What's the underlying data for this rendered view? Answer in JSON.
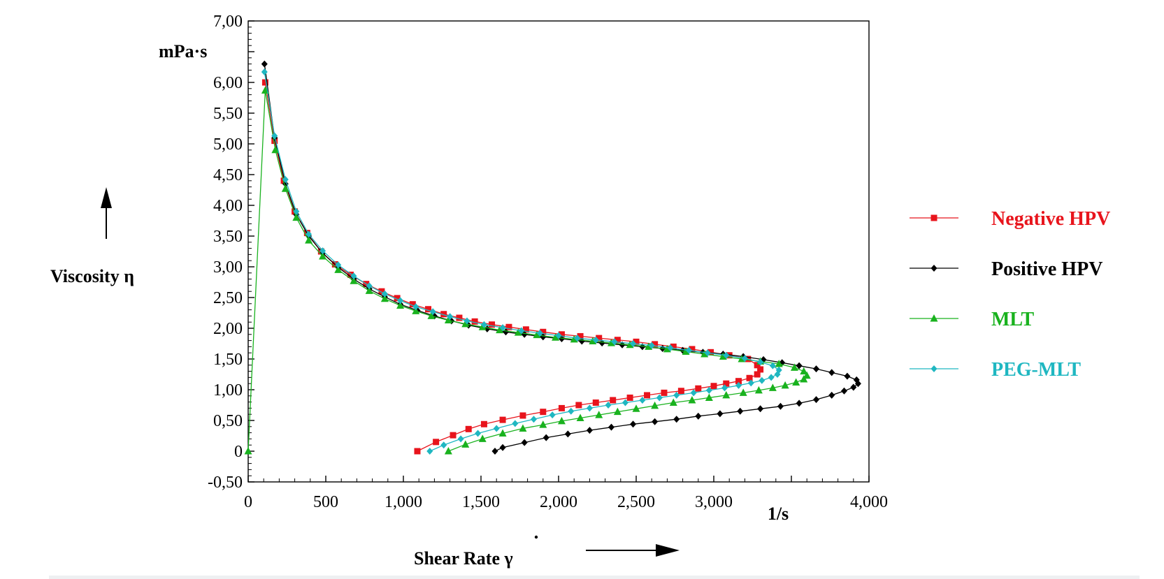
{
  "chart_data": {
    "type": "scatter",
    "title": "",
    "xlabel": "Shear Rate γ",
    "xunit": "1/s",
    "ylabel": "Viscosity η",
    "yunit": "mPa·s",
    "xlim": [
      0,
      4000
    ],
    "ylim": [
      -0.5,
      7.0
    ],
    "x_ticks": [
      "0",
      "500",
      "1,000",
      "1,500",
      "2,000",
      "2,500",
      "3,000",
      "4,000"
    ],
    "y_ticks": [
      "7,00",
      "6,00",
      "5,50",
      "5,00",
      "4,50",
      "4,00",
      "3,50",
      "3,00",
      "2,50",
      "2,00",
      "1,50",
      "1,00",
      "0,50",
      "0",
      "-0,50"
    ],
    "grid": false,
    "legend_position": "right",
    "series": [
      {
        "name": "Negative HPV",
        "color": "#e8141c",
        "marker": "square",
        "points": [
          [
            110,
            6.0
          ],
          [
            170,
            5.05
          ],
          [
            230,
            4.4
          ],
          [
            300,
            3.9
          ],
          [
            380,
            3.55
          ],
          [
            470,
            3.25
          ],
          [
            560,
            3.04
          ],
          [
            660,
            2.87
          ],
          [
            760,
            2.72
          ],
          [
            860,
            2.6
          ],
          [
            960,
            2.49
          ],
          [
            1060,
            2.39
          ],
          [
            1160,
            2.31
          ],
          [
            1260,
            2.23
          ],
          [
            1360,
            2.17
          ],
          [
            1460,
            2.11
          ],
          [
            1570,
            2.06
          ],
          [
            1680,
            2.02
          ],
          [
            1790,
            1.98
          ],
          [
            1900,
            1.94
          ],
          [
            2020,
            1.9
          ],
          [
            2140,
            1.87
          ],
          [
            2260,
            1.84
          ],
          [
            2380,
            1.81
          ],
          [
            2500,
            1.78
          ],
          [
            2620,
            1.74
          ],
          [
            2740,
            1.7
          ],
          [
            2860,
            1.66
          ],
          [
            2980,
            1.61
          ],
          [
            3100,
            1.56
          ],
          [
            3220,
            1.5
          ],
          [
            3280,
            1.4
          ],
          [
            3300,
            1.33
          ],
          [
            3280,
            1.25
          ],
          [
            3230,
            1.19
          ],
          [
            3160,
            1.14
          ],
          [
            3080,
            1.1
          ],
          [
            3000,
            1.06
          ],
          [
            2900,
            1.02
          ],
          [
            2790,
            0.98
          ],
          [
            2680,
            0.95
          ],
          [
            2570,
            0.91
          ],
          [
            2460,
            0.87
          ],
          [
            2350,
            0.83
          ],
          [
            2240,
            0.79
          ],
          [
            2130,
            0.75
          ],
          [
            2020,
            0.7
          ],
          [
            1900,
            0.64
          ],
          [
            1770,
            0.58
          ],
          [
            1640,
            0.51
          ],
          [
            1520,
            0.44
          ],
          [
            1420,
            0.36
          ],
          [
            1320,
            0.26
          ],
          [
            1210,
            0.15
          ],
          [
            1090,
            0.0
          ]
        ]
      },
      {
        "name": "Positive HPV",
        "color": "#000000",
        "marker": "diamond",
        "points": [
          [
            105,
            6.3
          ],
          [
            170,
            5.1
          ],
          [
            240,
            4.35
          ],
          [
            310,
            3.85
          ],
          [
            390,
            3.5
          ],
          [
            480,
            3.22
          ],
          [
            580,
            2.99
          ],
          [
            680,
            2.8
          ],
          [
            780,
            2.64
          ],
          [
            880,
            2.51
          ],
          [
            980,
            2.39
          ],
          [
            1090,
            2.29
          ],
          [
            1200,
            2.2
          ],
          [
            1310,
            2.12
          ],
          [
            1420,
            2.05
          ],
          [
            1540,
            1.99
          ],
          [
            1660,
            1.94
          ],
          [
            1780,
            1.9
          ],
          [
            1900,
            1.86
          ],
          [
            2020,
            1.83
          ],
          [
            2150,
            1.79
          ],
          [
            2280,
            1.76
          ],
          [
            2410,
            1.73
          ],
          [
            2540,
            1.7
          ],
          [
            2670,
            1.67
          ],
          [
            2800,
            1.64
          ],
          [
            2930,
            1.61
          ],
          [
            3060,
            1.58
          ],
          [
            3190,
            1.54
          ],
          [
            3320,
            1.49
          ],
          [
            3440,
            1.44
          ],
          [
            3550,
            1.39
          ],
          [
            3660,
            1.34
          ],
          [
            3760,
            1.28
          ],
          [
            3860,
            1.22
          ],
          [
            3920,
            1.16
          ],
          [
            3930,
            1.1
          ],
          [
            3900,
            1.04
          ],
          [
            3840,
            0.98
          ],
          [
            3760,
            0.91
          ],
          [
            3660,
            0.84
          ],
          [
            3550,
            0.78
          ],
          [
            3430,
            0.73
          ],
          [
            3300,
            0.69
          ],
          [
            3170,
            0.65
          ],
          [
            3040,
            0.61
          ],
          [
            2900,
            0.57
          ],
          [
            2760,
            0.52
          ],
          [
            2620,
            0.48
          ],
          [
            2480,
            0.44
          ],
          [
            2340,
            0.39
          ],
          [
            2200,
            0.34
          ],
          [
            2060,
            0.28
          ],
          [
            1920,
            0.22
          ],
          [
            1780,
            0.14
          ],
          [
            1640,
            0.06
          ],
          [
            1590,
            0.0
          ]
        ]
      },
      {
        "name": "MLT",
        "color": "#19b21e",
        "marker": "triangle",
        "points": [
          [
            0,
            0.0
          ],
          [
            110,
            5.87
          ],
          [
            175,
            4.9
          ],
          [
            240,
            4.27
          ],
          [
            310,
            3.8
          ],
          [
            390,
            3.43
          ],
          [
            480,
            3.17
          ],
          [
            580,
            2.95
          ],
          [
            680,
            2.77
          ],
          [
            780,
            2.61
          ],
          [
            880,
            2.48
          ],
          [
            980,
            2.37
          ],
          [
            1080,
            2.28
          ],
          [
            1180,
            2.2
          ],
          [
            1290,
            2.13
          ],
          [
            1400,
            2.07
          ],
          [
            1510,
            2.02
          ],
          [
            1620,
            1.97
          ],
          [
            1740,
            1.93
          ],
          [
            1860,
            1.89
          ],
          [
            1980,
            1.85
          ],
          [
            2100,
            1.82
          ],
          [
            2220,
            1.79
          ],
          [
            2340,
            1.76
          ],
          [
            2460,
            1.73
          ],
          [
            2580,
            1.7
          ],
          [
            2700,
            1.66
          ],
          [
            2820,
            1.62
          ],
          [
            2940,
            1.58
          ],
          [
            3060,
            1.54
          ],
          [
            3180,
            1.5
          ],
          [
            3300,
            1.46
          ],
          [
            3420,
            1.42
          ],
          [
            3520,
            1.36
          ],
          [
            3580,
            1.3
          ],
          [
            3600,
            1.23
          ],
          [
            3580,
            1.17
          ],
          [
            3530,
            1.12
          ],
          [
            3460,
            1.07
          ],
          [
            3380,
            1.03
          ],
          [
            3290,
            0.99
          ],
          [
            3190,
            0.95
          ],
          [
            3080,
            0.91
          ],
          [
            2970,
            0.87
          ],
          [
            2860,
            0.83
          ],
          [
            2740,
            0.79
          ],
          [
            2620,
            0.74
          ],
          [
            2500,
            0.69
          ],
          [
            2380,
            0.64
          ],
          [
            2260,
            0.59
          ],
          [
            2140,
            0.54
          ],
          [
            2020,
            0.49
          ],
          [
            1900,
            0.43
          ],
          [
            1770,
            0.37
          ],
          [
            1640,
            0.29
          ],
          [
            1510,
            0.2
          ],
          [
            1400,
            0.11
          ],
          [
            1290,
            0.0
          ]
        ]
      },
      {
        "name": "PEG-MLT",
        "color": "#1fb7c1",
        "marker": "diamond",
        "points": [
          [
            105,
            6.17
          ],
          [
            170,
            5.13
          ],
          [
            240,
            4.42
          ],
          [
            310,
            3.9
          ],
          [
            390,
            3.53
          ],
          [
            480,
            3.26
          ],
          [
            580,
            3.03
          ],
          [
            680,
            2.85
          ],
          [
            780,
            2.69
          ],
          [
            880,
            2.56
          ],
          [
            980,
            2.45
          ],
          [
            1080,
            2.35
          ],
          [
            1190,
            2.27
          ],
          [
            1300,
            2.19
          ],
          [
            1410,
            2.12
          ],
          [
            1520,
            2.06
          ],
          [
            1640,
            2.01
          ],
          [
            1760,
            1.96
          ],
          [
            1880,
            1.92
          ],
          [
            2000,
            1.88
          ],
          [
            2120,
            1.84
          ],
          [
            2240,
            1.81
          ],
          [
            2360,
            1.78
          ],
          [
            2480,
            1.75
          ],
          [
            2600,
            1.72
          ],
          [
            2720,
            1.68
          ],
          [
            2840,
            1.64
          ],
          [
            2960,
            1.6
          ],
          [
            3080,
            1.56
          ],
          [
            3200,
            1.51
          ],
          [
            3300,
            1.45
          ],
          [
            3380,
            1.39
          ],
          [
            3420,
            1.32
          ],
          [
            3410,
            1.25
          ],
          [
            3370,
            1.2
          ],
          [
            3310,
            1.15
          ],
          [
            3240,
            1.11
          ],
          [
            3160,
            1.07
          ],
          [
            3070,
            1.03
          ],
          [
            2970,
            0.99
          ],
          [
            2870,
            0.95
          ],
          [
            2760,
            0.91
          ],
          [
            2650,
            0.87
          ],
          [
            2540,
            0.83
          ],
          [
            2430,
            0.79
          ],
          [
            2320,
            0.75
          ],
          [
            2200,
            0.7
          ],
          [
            2080,
            0.65
          ],
          [
            1960,
            0.59
          ],
          [
            1840,
            0.52
          ],
          [
            1720,
            0.45
          ],
          [
            1600,
            0.37
          ],
          [
            1480,
            0.29
          ],
          [
            1370,
            0.2
          ],
          [
            1260,
            0.1
          ],
          [
            1170,
            0.0
          ]
        ]
      }
    ]
  }
}
